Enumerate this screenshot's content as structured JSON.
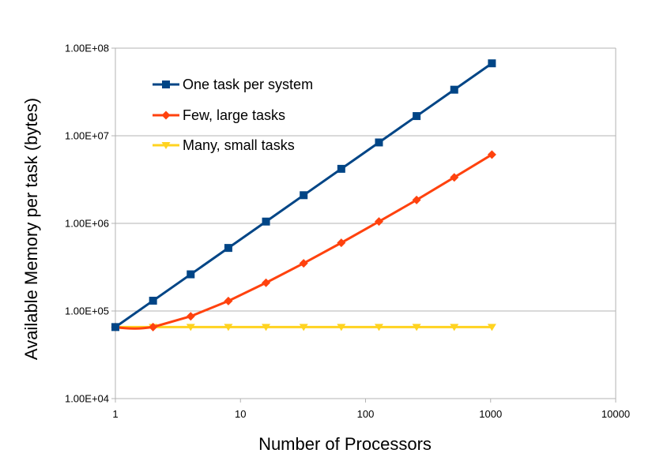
{
  "chart_data": {
    "type": "line",
    "xlabel": "Number of Processors",
    "ylabel": "Available Memory per task (bytes)",
    "x_scale": "log",
    "y_scale": "log",
    "xlim": [
      1,
      10000
    ],
    "ylim": [
      10000,
      100000000
    ],
    "x_ticks": [
      "1",
      "10",
      "100",
      "1000",
      "10000"
    ],
    "y_ticks": [
      "1.00E+04",
      "1.00E+05",
      "1.00E+06",
      "1.00E+07",
      "1.00E+08"
    ],
    "grid": "horizontal",
    "legend_position": "top-left",
    "x": [
      1,
      2,
      4,
      8,
      16,
      32,
      64,
      128,
      256,
      512,
      1024
    ],
    "series": [
      {
        "name": "One task per system",
        "color": "#004586",
        "marker": "square",
        "values": [
          65536,
          131072,
          262144,
          524288,
          1048576,
          2097152,
          4194304,
          8388608,
          16777216,
          33554432,
          67108864
        ]
      },
      {
        "name": "Few, large tasks",
        "color": "#ff420e",
        "marker": "diamond",
        "values": [
          65536,
          65536,
          87000,
          130000,
          210000,
          350000,
          600000,
          1050000,
          1850000,
          3350000,
          6100000
        ]
      },
      {
        "name": "Many, small tasks",
        "color": "#ffd320",
        "marker": "triangle-down",
        "values": [
          65536,
          65536,
          65536,
          65536,
          65536,
          65536,
          65536,
          65536,
          65536,
          65536,
          65536
        ]
      }
    ]
  }
}
